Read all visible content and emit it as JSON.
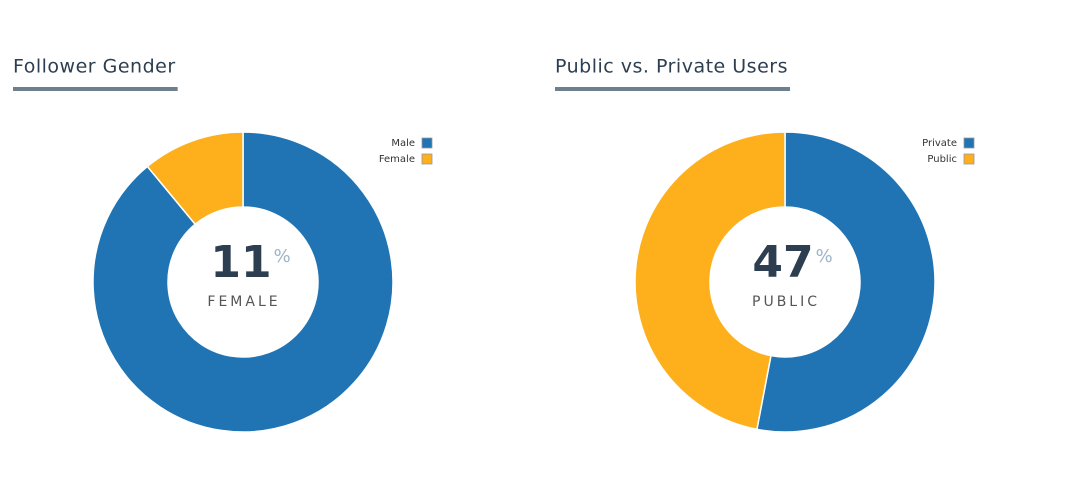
{
  "chart_data": [
    {
      "type": "pie",
      "title": "Follower Gender",
      "categories": [
        "Male",
        "Female"
      ],
      "values": [
        89,
        11
      ],
      "colors": [
        "#2074b3",
        "#fdb01c"
      ],
      "center_unit": "%",
      "center_label": "FEMALE"
    },
    {
      "type": "pie",
      "title": "Public vs. Private Users",
      "categories": [
        "Private",
        "Public"
      ],
      "values": [
        53,
        47
      ],
      "colors": [
        "#2074b3",
        "#fdb01c"
      ],
      "center_unit": "%",
      "center_label": "PUBLIC"
    }
  ]
}
